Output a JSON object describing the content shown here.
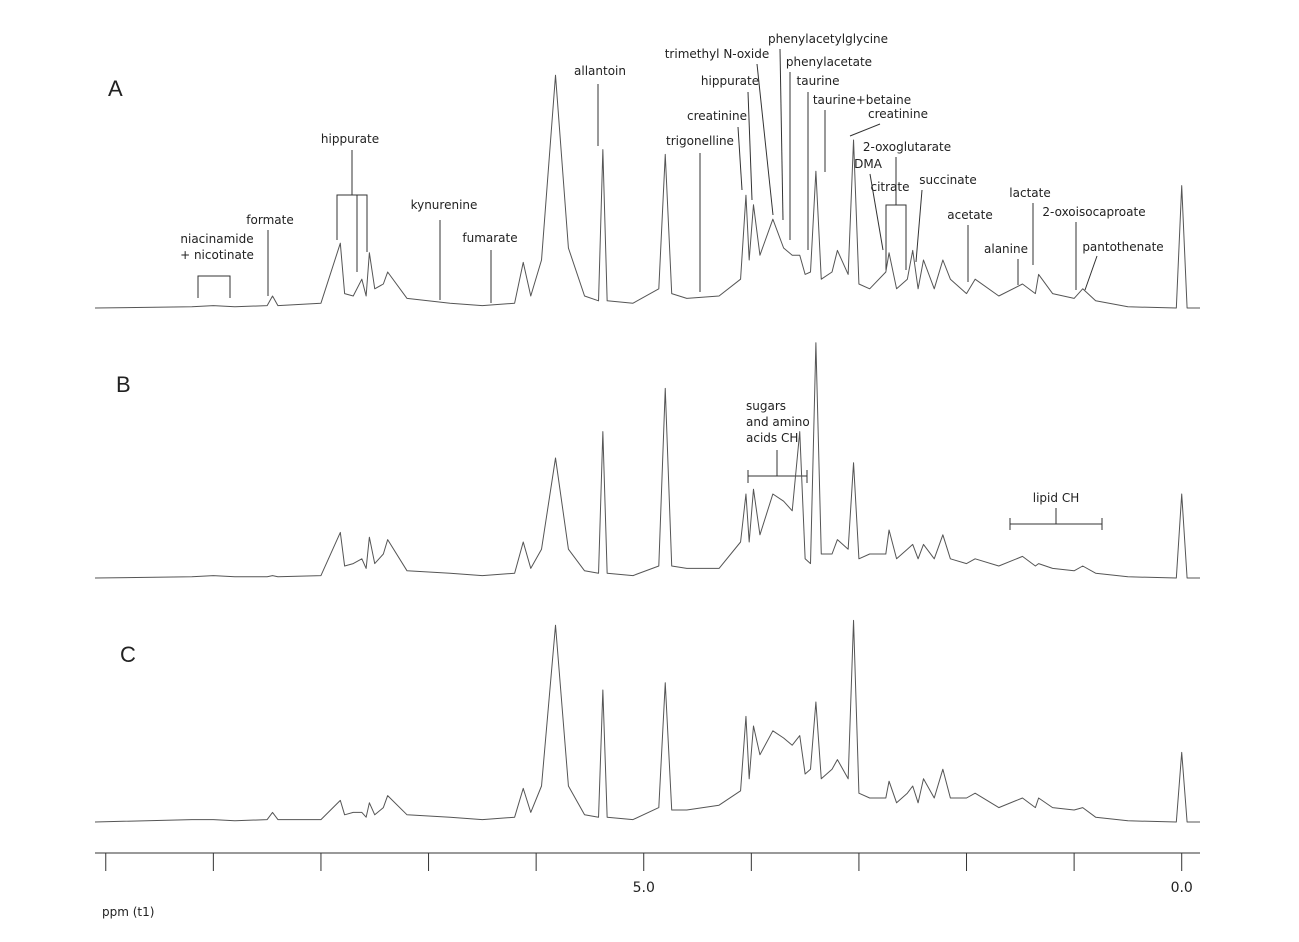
{
  "chart_data": {
    "type": "line",
    "x_label": "ppm (t1)",
    "xlim": [
      10.1,
      -0.17
    ],
    "xticks": [
      {
        "value": 5,
        "label": "5.0"
      },
      {
        "value": 0,
        "label": "0.0"
      }
    ],
    "xminor_ticks": [
      10,
      9,
      8,
      7,
      6,
      4,
      3,
      2,
      1
    ],
    "ylim": [
      0,
      100
    ],
    "x": [
      10.1,
      9.2,
      9.0,
      8.8,
      8.5,
      8.45,
      8.4,
      8.0,
      7.82,
      7.78,
      7.7,
      7.62,
      7.58,
      7.55,
      7.5,
      7.42,
      7.38,
      7.2,
      6.8,
      6.5,
      6.2,
      6.12,
      6.05,
      5.95,
      5.82,
      5.7,
      5.55,
      5.42,
      5.38,
      5.34,
      5.1,
      4.86,
      4.8,
      4.74,
      4.6,
      4.3,
      4.1,
      4.05,
      4.02,
      3.98,
      3.92,
      3.8,
      3.7,
      3.62,
      3.55,
      3.5,
      3.45,
      3.4,
      3.35,
      3.25,
      3.2,
      3.1,
      3.05,
      3.0,
      2.9,
      2.75,
      2.72,
      2.65,
      2.55,
      2.5,
      2.45,
      2.4,
      2.3,
      2.22,
      2.15,
      2.0,
      1.92,
      1.7,
      1.48,
      1.36,
      1.33,
      1.2,
      1.0,
      0.92,
      0.8,
      0.5,
      0.05,
      0.0,
      -0.05,
      -0.17
    ],
    "series": [
      {
        "name": "A",
        "color": "#555555",
        "values": [
          0,
          0.5,
          1,
          0.5,
          1,
          5,
          1,
          2,
          27,
          6,
          5,
          12,
          5,
          23,
          8,
          10,
          15,
          4,
          2,
          1,
          2,
          19,
          5,
          20,
          97,
          25,
          5,
          3,
          66,
          3,
          2,
          8,
          64,
          6,
          4,
          5,
          12,
          47,
          20,
          43,
          22,
          37,
          25,
          22,
          22,
          14,
          15,
          57,
          12,
          15,
          24,
          14,
          70,
          10,
          8,
          15,
          23,
          8,
          12,
          24,
          8,
          20,
          8,
          20,
          12,
          6,
          12,
          5,
          10,
          6,
          14,
          6,
          4,
          8,
          3,
          0.5,
          0,
          51,
          0,
          0
        ]
      },
      {
        "name": "B",
        "color": "#555555",
        "values": [
          0,
          0.5,
          1,
          0.5,
          0.5,
          1,
          0.5,
          1,
          19,
          5,
          6,
          8,
          4,
          17,
          6,
          10,
          16,
          3,
          2,
          1,
          2,
          15,
          4,
          12,
          50,
          12,
          3,
          2,
          61,
          2,
          1,
          5,
          79,
          5,
          4,
          4,
          15,
          35,
          15,
          37,
          18,
          35,
          32,
          28,
          61,
          8,
          6,
          98,
          10,
          10,
          16,
          12,
          48,
          8,
          10,
          10,
          20,
          8,
          12,
          14,
          8,
          14,
          8,
          18,
          8,
          6,
          8,
          5,
          9,
          5,
          6,
          4,
          3,
          5,
          2,
          0.5,
          0,
          35,
          0,
          0
        ]
      },
      {
        "name": "C",
        "color": "#555555",
        "values": [
          0,
          1,
          1,
          0.5,
          1,
          4,
          1,
          1,
          9,
          3,
          4,
          4,
          2,
          8,
          3,
          6,
          11,
          3,
          2,
          1,
          2,
          14,
          4,
          15,
          82,
          15,
          3,
          2,
          55,
          2,
          1,
          6,
          58,
          5,
          5,
          7,
          13,
          44,
          18,
          40,
          28,
          38,
          35,
          32,
          36,
          20,
          22,
          50,
          18,
          22,
          26,
          18,
          84,
          12,
          10,
          10,
          17,
          8,
          12,
          15,
          8,
          18,
          10,
          22,
          10,
          10,
          12,
          6,
          10,
          6,
          10,
          6,
          5,
          6,
          2,
          0.5,
          0,
          29,
          0,
          0
        ]
      }
    ],
    "annotations": [
      [
        "niacinamide",
        "+ nicotinate"
      ],
      "formate",
      "hippurate",
      "kynurenine",
      "fumarate",
      "allantoin",
      "trigonelline",
      "creatinine",
      "hippurate",
      "trimethyl N-oxide",
      "phenylacetylglycine",
      "phenylacetate",
      "taurine",
      "taurine+betaine",
      "creatinine",
      "DMA",
      "2-oxoglutarate",
      "citrate",
      "succinate",
      "acetate",
      "alanine",
      "lactate",
      "2-oxoisocaproate",
      "pantothenate",
      [
        "sugars",
        "and amino",
        "acids CH"
      ],
      "lipid CH"
    ]
  }
}
